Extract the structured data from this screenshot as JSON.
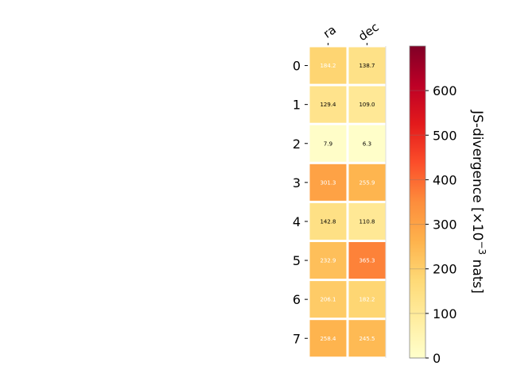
{
  "chart_data": {
    "type": "heatmap",
    "columns": [
      "ra",
      "dec"
    ],
    "rows": [
      "0",
      "1",
      "2",
      "3",
      "4",
      "5",
      "6",
      "7"
    ],
    "values": [
      [
        184.2,
        138.7
      ],
      [
        129.4,
        109.0
      ],
      [
        7.9,
        6.3
      ],
      [
        301.3,
        255.9
      ],
      [
        142.8,
        110.8
      ],
      [
        232.9,
        365.3
      ],
      [
        206.1,
        182.2
      ],
      [
        258.4,
        245.5
      ]
    ],
    "cell_labels": [
      [
        "184.2",
        "138.7"
      ],
      [
        "129.4",
        "109.0"
      ],
      [
        "7.9",
        "6.3"
      ],
      [
        "301.3",
        "255.9"
      ],
      [
        "142.8",
        "110.8"
      ],
      [
        "232.9",
        "365.3"
      ],
      [
        "206.1",
        "182.2"
      ],
      [
        "258.4",
        "245.5"
      ]
    ],
    "colorbar": {
      "label_prefix": "JS-divergence [×10",
      "label_exponent": "−3",
      "label_suffix": " nats]",
      "range": [
        0,
        700
      ],
      "ticks": [
        0,
        100,
        200,
        300,
        400,
        500,
        600
      ],
      "tick_labels": [
        "0",
        "100",
        "200",
        "300",
        "400",
        "500",
        "600"
      ],
      "colormap": "YlOrRd"
    },
    "x_tick_rotation": "rotated labels on top",
    "grid": false
  }
}
